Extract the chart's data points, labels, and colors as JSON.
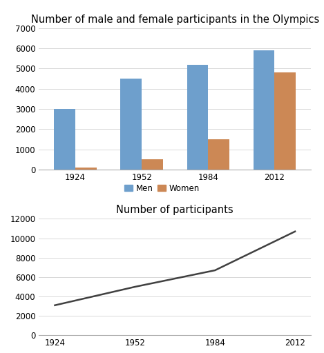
{
  "years": [
    1924,
    1952,
    1984,
    2012
  ],
  "men": [
    3000,
    4500,
    5200,
    5900
  ],
  "women": [
    100,
    500,
    1500,
    4800
  ],
  "total": [
    3100,
    5000,
    6700,
    10700
  ],
  "bar_color_men": "#6E9FCC",
  "bar_color_women": "#CC8855",
  "line_color": "#404040",
  "title_bar": "Number of male and female participants in the Olympics",
  "title_line": "Number of participants",
  "legend_men": "Men",
  "legend_women": "Women",
  "bar_ylim": [
    0,
    7000
  ],
  "bar_yticks": [
    0,
    1000,
    2000,
    3000,
    4000,
    5000,
    6000,
    7000
  ],
  "line_ylim": [
    0,
    12000
  ],
  "line_yticks": [
    0,
    2000,
    4000,
    6000,
    8000,
    10000,
    12000
  ],
  "bg_color": "#ffffff",
  "title_fontsize": 10.5,
  "tick_fontsize": 8.5,
  "legend_fontsize": 8.5,
  "bar_width": 0.32
}
